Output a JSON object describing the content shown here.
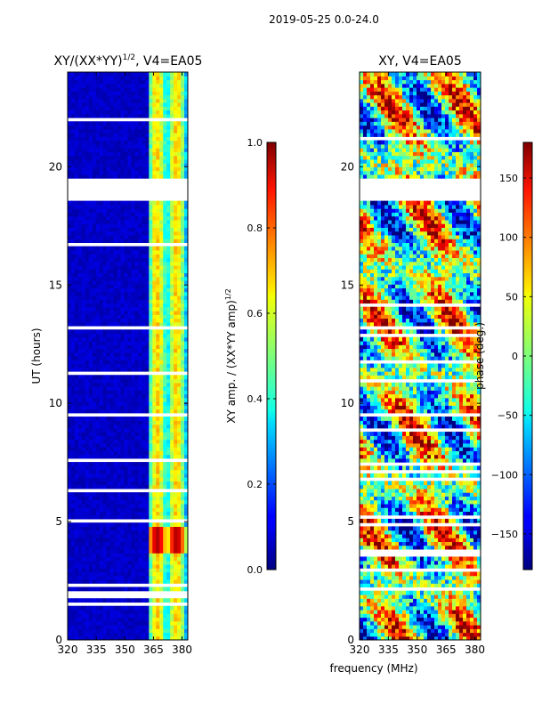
{
  "chart_data": {
    "suptitle": "2019-05-25 0.0-24.0",
    "shared_xlabel": "frequency (MHz)",
    "panels": [
      {
        "type": "heatmap",
        "title_main": "XY/(XX*YY)",
        "title_sup": "1/2",
        "title_rest": ", V4=EA05",
        "ylabel": "UT (hours)",
        "x_ticks": [
          "320",
          "335",
          "350",
          "365",
          "380"
        ],
        "x_tick_values": [
          320,
          335,
          350,
          365,
          380
        ],
        "xlim": [
          320,
          383
        ],
        "y_ticks": [
          "0",
          "5",
          "10",
          "15",
          "20"
        ],
        "y_tick_values": [
          0,
          5,
          10,
          15,
          20
        ],
        "ylim": [
          0,
          24
        ],
        "colormap": "jet",
        "colorbar": {
          "label_main": "XY amp. / (XX*YY amp)",
          "label_sup": "1/2",
          "ticks": [
            "0.0",
            "0.2",
            "0.4",
            "0.6",
            "0.8",
            "1.0"
          ],
          "tick_values": [
            0.0,
            0.2,
            0.4,
            0.6,
            0.8,
            1.0
          ],
          "range": [
            0.0,
            1.0
          ]
        },
        "data_gaps_hours": [
          [
            18.6,
            19.5
          ]
        ]
      },
      {
        "type": "heatmap",
        "title": "XY, V4=EA05",
        "x_ticks": [
          "320",
          "335",
          "350",
          "365",
          "380"
        ],
        "x_tick_values": [
          320,
          335,
          350,
          365,
          380
        ],
        "xlim": [
          320,
          383
        ],
        "y_ticks": [
          "0",
          "5",
          "10",
          "15",
          "20"
        ],
        "y_tick_values": [
          0,
          5,
          10,
          15,
          20
        ],
        "ylim": [
          0,
          24
        ],
        "colormap": "jet",
        "colorbar": {
          "label": "phase (deg.)",
          "ticks": [
            "−150",
            "−100",
            "−50",
            "0",
            "50",
            "100",
            "150"
          ],
          "tick_values": [
            -150,
            -100,
            -50,
            0,
            50,
            100,
            150
          ],
          "range": [
            -180,
            180
          ]
        },
        "data_gaps_hours": [
          [
            18.6,
            19.5
          ]
        ]
      }
    ]
  }
}
